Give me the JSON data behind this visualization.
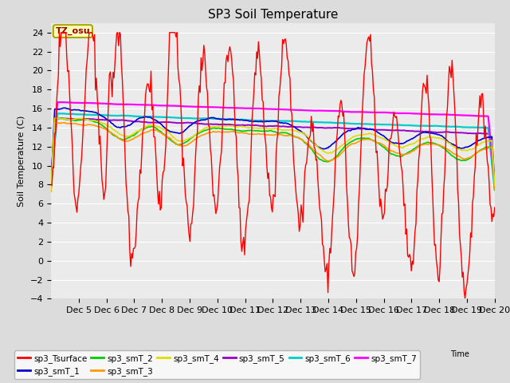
{
  "title": "SP3 Soil Temperature",
  "ylabel": "Soil Temperature (C)",
  "xlabel": "Time",
  "watermark": "TZ_osu",
  "ylim": [
    -4,
    25
  ],
  "yticks": [
    -4,
    -2,
    0,
    2,
    4,
    6,
    8,
    10,
    12,
    14,
    16,
    18,
    20,
    22,
    24
  ],
  "bg_color": "#dcdcdc",
  "plot_bg": "#ebebeb",
  "series_colors": {
    "sp3_Tsurface": "#ff0000",
    "sp3_smT_1": "#0000cc",
    "sp3_smT_2": "#00cc00",
    "sp3_smT_3": "#ff9900",
    "sp3_smT_4": "#dddd00",
    "sp3_smT_5": "#9900cc",
    "sp3_smT_6": "#00cccc",
    "sp3_smT_7": "#ff00ff"
  },
  "n_points": 480,
  "legend_ncol": 6
}
